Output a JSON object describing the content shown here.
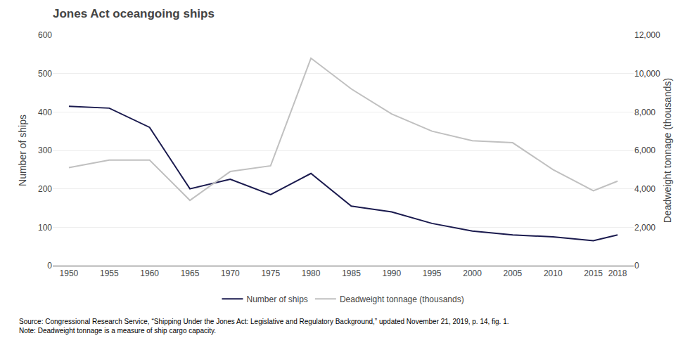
{
  "chart_data": {
    "type": "line",
    "title": "Jones Act oceangoing ships",
    "x": [
      1950,
      1955,
      1960,
      1965,
      1970,
      1975,
      1980,
      1985,
      1990,
      1995,
      2000,
      2005,
      2010,
      2015,
      2018
    ],
    "xlim": [
      1948,
      2020
    ],
    "xticks": [
      1950,
      1955,
      1960,
      1965,
      1970,
      1975,
      1980,
      1985,
      1990,
      1995,
      2000,
      2005,
      2010,
      2015,
      2018
    ],
    "ylabel": "Number of ships",
    "y2label": "Deadweight tonnage (thousands)",
    "ylim": [
      0,
      600
    ],
    "yticks": [
      0,
      100,
      200,
      300,
      400,
      500,
      600
    ],
    "y2lim": [
      0,
      12000
    ],
    "y2ticks": [
      0,
      {
        "value": 2000,
        "label": "2,000"
      },
      {
        "value": 4000,
        "label": "4,000"
      },
      {
        "value": 6000,
        "label": "6,000"
      },
      {
        "value": 8000,
        "label": "8,000"
      },
      {
        "value": 10000,
        "label": "10,000"
      },
      {
        "value": 12000,
        "label": "12,000"
      }
    ],
    "series": [
      {
        "name": "Number of ships",
        "color": "#1a1a4e",
        "values": [
          415,
          410,
          360,
          200,
          225,
          185,
          240,
          155,
          140,
          110,
          90,
          80,
          75,
          65,
          80
        ]
      },
      {
        "name": "Deadweight tonnage (thousands)",
        "color": "#c0c0c0",
        "axis": "y2",
        "values": [
          5100,
          5500,
          5500,
          3400,
          4900,
          5200,
          10800,
          9200,
          7900,
          7000,
          6500,
          6400,
          5000,
          3900,
          4400
        ]
      }
    ],
    "grid": true,
    "legend": "bottom",
    "annotations": [
      "Source: Congressional Research Service, “Shipping Under the Jones Act: Legislative and Regulatory Background,” updated November 21, 2019, p. 14, fig. 1.\nNote: Deadweight tonnage is a measure of ship cargo capacity."
    ]
  }
}
